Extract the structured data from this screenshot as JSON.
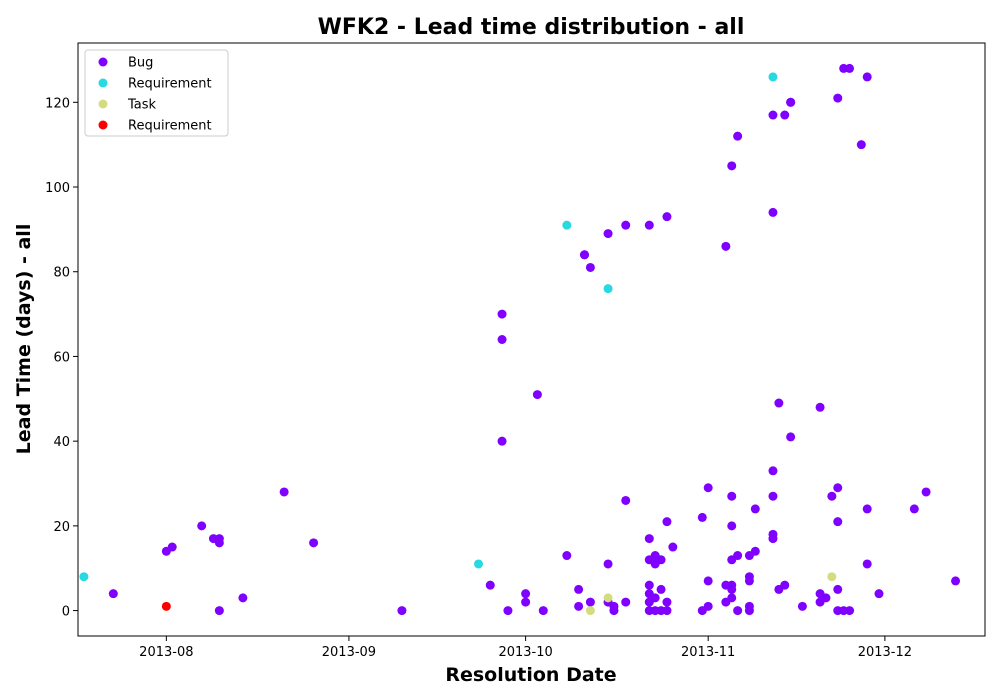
{
  "chart_data": {
    "type": "scatter",
    "title": "WFK2 - Lead time distribution - all",
    "xlabel": "Resolution Date",
    "ylabel": "Lead Time (days) - all",
    "x_type": "date",
    "xlim": [
      "2013-07-17",
      "2013-12-18"
    ],
    "ylim": [
      -6,
      134
    ],
    "x_ticks": [
      "2013-08-01",
      "2013-09-01",
      "2013-10-01",
      "2013-11-01",
      "2013-12-01"
    ],
    "x_tick_labels": [
      "2013-08",
      "2013-09",
      "2013-10",
      "2013-11",
      "2013-12"
    ],
    "y_ticks": [
      0,
      20,
      40,
      60,
      80,
      100,
      120
    ],
    "y_tick_labels": [
      "0",
      "20",
      "40",
      "60",
      "80",
      "100",
      "120"
    ],
    "grid": false,
    "legend_position": "top-left",
    "series": [
      {
        "name": "Bug",
        "color": "#8000ff",
        "points": [
          [
            "2013-07-23",
            4
          ],
          [
            "2013-08-01",
            14
          ],
          [
            "2013-08-02",
            15
          ],
          [
            "2013-08-07",
            20
          ],
          [
            "2013-08-09",
            17
          ],
          [
            "2013-08-10",
            17
          ],
          [
            "2013-08-10",
            16
          ],
          [
            "2013-08-10",
            0
          ],
          [
            "2013-08-14",
            3
          ],
          [
            "2013-08-21",
            28
          ],
          [
            "2013-08-26",
            16
          ],
          [
            "2013-09-10",
            0
          ],
          [
            "2013-09-25",
            6
          ],
          [
            "2013-09-27",
            70
          ],
          [
            "2013-09-27",
            64
          ],
          [
            "2013-09-27",
            40
          ],
          [
            "2013-09-28",
            0
          ],
          [
            "2013-10-01",
            4
          ],
          [
            "2013-10-01",
            2
          ],
          [
            "2013-10-03",
            51
          ],
          [
            "2013-10-04",
            0
          ],
          [
            "2013-10-08",
            13
          ],
          [
            "2013-10-10",
            1
          ],
          [
            "2013-10-10",
            5
          ],
          [
            "2013-10-11",
            84
          ],
          [
            "2013-10-11",
            84
          ],
          [
            "2013-10-12",
            81
          ],
          [
            "2013-10-12",
            2
          ],
          [
            "2013-10-15",
            89
          ],
          [
            "2013-10-15",
            11
          ],
          [
            "2013-10-15",
            2
          ],
          [
            "2013-10-16",
            1
          ],
          [
            "2013-10-16",
            0
          ],
          [
            "2013-10-18",
            91
          ],
          [
            "2013-10-18",
            26
          ],
          [
            "2013-10-18",
            2
          ],
          [
            "2013-10-22",
            91
          ],
          [
            "2013-10-22",
            17
          ],
          [
            "2013-10-22",
            12
          ],
          [
            "2013-10-22",
            6
          ],
          [
            "2013-10-22",
            4
          ],
          [
            "2013-10-22",
            2
          ],
          [
            "2013-10-22",
            0
          ],
          [
            "2013-10-23",
            13
          ],
          [
            "2013-10-23",
            11
          ],
          [
            "2013-10-23",
            3
          ],
          [
            "2013-10-23",
            0
          ],
          [
            "2013-10-24",
            12
          ],
          [
            "2013-10-24",
            5
          ],
          [
            "2013-10-24",
            0
          ],
          [
            "2013-10-25",
            93
          ],
          [
            "2013-10-25",
            21
          ],
          [
            "2013-10-25",
            2
          ],
          [
            "2013-10-25",
            0
          ],
          [
            "2013-10-26",
            15
          ],
          [
            "2013-10-31",
            22
          ],
          [
            "2013-10-31",
            0
          ],
          [
            "2013-11-01",
            29
          ],
          [
            "2013-11-01",
            7
          ],
          [
            "2013-11-01",
            1
          ],
          [
            "2013-11-04",
            86
          ],
          [
            "2013-11-04",
            6
          ],
          [
            "2013-11-04",
            2
          ],
          [
            "2013-11-05",
            105
          ],
          [
            "2013-11-05",
            27
          ],
          [
            "2013-11-05",
            20
          ],
          [
            "2013-11-05",
            12
          ],
          [
            "2013-11-05",
            6
          ],
          [
            "2013-11-05",
            5
          ],
          [
            "2013-11-05",
            3
          ],
          [
            "2013-11-06",
            112
          ],
          [
            "2013-11-06",
            13
          ],
          [
            "2013-11-06",
            0
          ],
          [
            "2013-11-08",
            13
          ],
          [
            "2013-11-08",
            8
          ],
          [
            "2013-11-08",
            7
          ],
          [
            "2013-11-08",
            1
          ],
          [
            "2013-11-08",
            0
          ],
          [
            "2013-11-09",
            24
          ],
          [
            "2013-11-09",
            14
          ],
          [
            "2013-11-12",
            117
          ],
          [
            "2013-11-12",
            94
          ],
          [
            "2013-11-12",
            33
          ],
          [
            "2013-11-12",
            27
          ],
          [
            "2013-11-12",
            18
          ],
          [
            "2013-11-12",
            17
          ],
          [
            "2013-11-13",
            49
          ],
          [
            "2013-11-13",
            5
          ],
          [
            "2013-11-14",
            117
          ],
          [
            "2013-11-14",
            6
          ],
          [
            "2013-11-15",
            120
          ],
          [
            "2013-11-15",
            120
          ],
          [
            "2013-11-15",
            41
          ],
          [
            "2013-11-17",
            1
          ],
          [
            "2013-11-20",
            48
          ],
          [
            "2013-11-20",
            4
          ],
          [
            "2013-11-20",
            2
          ],
          [
            "2013-11-21",
            3
          ],
          [
            "2013-11-22",
            27
          ],
          [
            "2013-11-23",
            121
          ],
          [
            "2013-11-23",
            29
          ],
          [
            "2013-11-23",
            21
          ],
          [
            "2013-11-23",
            5
          ],
          [
            "2013-11-23",
            0
          ],
          [
            "2013-11-24",
            128
          ],
          [
            "2013-11-24",
            0
          ],
          [
            "2013-11-25",
            128
          ],
          [
            "2013-11-25",
            0
          ],
          [
            "2013-11-27",
            110
          ],
          [
            "2013-11-28",
            126
          ],
          [
            "2013-11-28",
            24
          ],
          [
            "2013-11-28",
            11
          ],
          [
            "2013-11-30",
            4
          ],
          [
            "2013-12-06",
            24
          ],
          [
            "2013-12-08",
            28
          ],
          [
            "2013-12-13",
            7
          ]
        ]
      },
      {
        "name": "Requirement",
        "color": "#27d9e0",
        "points": [
          [
            "2013-07-18",
            8
          ],
          [
            "2013-09-23",
            11
          ],
          [
            "2013-10-08",
            91
          ],
          [
            "2013-10-15",
            76
          ],
          [
            "2013-11-12",
            126
          ]
        ]
      },
      {
        "name": "Task",
        "color": "#d4dc7f",
        "points": [
          [
            "2013-10-12",
            0
          ],
          [
            "2013-10-15",
            3
          ],
          [
            "2013-11-22",
            8
          ]
        ]
      },
      {
        "name": "Requirement",
        "color": "#ff0000",
        "points": [
          [
            "2013-08-01",
            1
          ]
        ]
      }
    ]
  }
}
